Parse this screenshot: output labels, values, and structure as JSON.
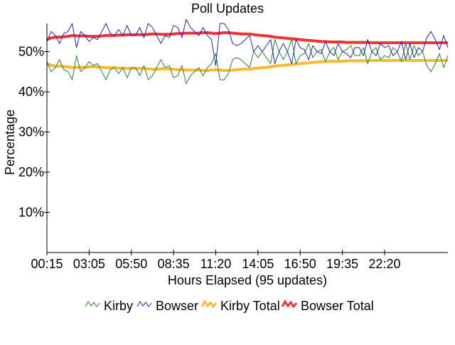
{
  "chart_data": {
    "type": "line",
    "title": "Poll Updates",
    "xlabel": "Hours Elapsed (95 updates)",
    "ylabel": "Percentage",
    "y_ticks": [
      "10%",
      "20%",
      "30%",
      "40%",
      "50%"
    ],
    "y_tick_values": [
      10,
      20,
      30,
      40,
      50
    ],
    "ylim": [
      0,
      57
    ],
    "x_ticks": [
      "00:15",
      "03:05",
      "05:50",
      "08:35",
      "11:20",
      "14:05",
      "16:50",
      "19:35",
      "22:20"
    ],
    "x_tick_indices": [
      0,
      10,
      20,
      30,
      40,
      50,
      60,
      70,
      80
    ],
    "xlim": [
      0,
      95
    ],
    "grid": false,
    "legend_position": "bottom",
    "series": [
      {
        "name": "Kirby",
        "color": "#228B22",
        "style": "thin",
        "values": [
          47.5,
          45.0,
          46.0,
          48.0,
          45.5,
          45.0,
          43.0,
          49.0,
          45.0,
          46.0,
          47.5,
          46.5,
          47.0,
          45.0,
          43.0,
          45.5,
          46.0,
          44.5,
          46.0,
          43.5,
          46.0,
          46.0,
          44.0,
          46.5,
          43.0,
          44.0,
          46.0,
          48.0,
          46.0,
          46.5,
          43.5,
          44.0,
          46.5,
          42.0,
          44.0,
          45.0,
          46.0,
          44.0,
          46.0,
          47.0,
          49.5,
          43.0,
          43.0,
          44.5,
          48.0,
          48.5,
          48.0,
          47.0,
          46.0,
          50.0,
          48.5,
          50.0,
          48.5,
          47.0,
          53.0,
          50.0,
          48.0,
          50.0,
          53.0,
          47.0,
          49.0,
          49.5,
          52.0,
          48.5,
          50.0,
          50.5,
          47.5,
          50.0,
          51.0,
          48.0,
          50.0,
          50.5,
          51.5,
          49.0,
          49.0,
          51.0,
          47.0,
          50.0,
          51.0,
          48.0,
          49.0,
          48.5,
          51.0,
          50.0,
          47.5,
          52.0,
          48.0,
          51.5,
          49.0,
          50.0,
          46.5,
          45.0,
          47.0,
          49.5,
          46.0,
          49.0
        ]
      },
      {
        "name": "Bowser",
        "color": "#2222CC",
        "style": "thin",
        "values": [
          52.5,
          55.0,
          54.0,
          52.0,
          54.5,
          55.0,
          57.0,
          51.0,
          55.0,
          54.0,
          52.5,
          53.5,
          53.0,
          55.0,
          57.0,
          54.5,
          54.0,
          55.5,
          54.0,
          56.5,
          54.0,
          54.0,
          56.0,
          53.5,
          57.0,
          56.0,
          54.0,
          52.0,
          54.0,
          53.5,
          56.5,
          56.0,
          53.5,
          58.0,
          56.0,
          55.0,
          54.0,
          56.0,
          54.0,
          53.0,
          46.5,
          57.0,
          57.0,
          55.5,
          52.0,
          51.5,
          52.0,
          53.0,
          54.0,
          50.0,
          51.5,
          50.0,
          51.5,
          53.0,
          47.0,
          50.0,
          52.0,
          50.0,
          47.0,
          53.0,
          51.0,
          50.5,
          48.0,
          51.5,
          50.0,
          49.5,
          52.5,
          50.0,
          49.0,
          52.0,
          50.0,
          49.5,
          48.5,
          51.0,
          51.0,
          49.0,
          53.0,
          50.0,
          49.0,
          52.0,
          51.0,
          51.5,
          49.0,
          50.0,
          52.5,
          48.0,
          52.0,
          48.5,
          51.0,
          50.0,
          53.5,
          55.0,
          53.0,
          50.5,
          54.0,
          51.0
        ]
      },
      {
        "name": "Kirby Total",
        "color": "#FFB833",
        "style": "thick",
        "values": [
          47.0,
          46.6,
          46.4,
          46.4,
          46.3,
          46.2,
          46.0,
          46.1,
          46.1,
          46.1,
          46.2,
          46.2,
          46.2,
          46.1,
          46.0,
          46.0,
          46.0,
          45.9,
          45.9,
          45.8,
          45.8,
          45.8,
          45.8,
          45.8,
          45.7,
          45.6,
          45.6,
          45.7,
          45.7,
          45.7,
          45.6,
          45.5,
          45.5,
          45.4,
          45.4,
          45.4,
          45.4,
          45.3,
          45.3,
          45.4,
          45.5,
          45.4,
          45.3,
          45.3,
          45.4,
          45.5,
          45.6,
          45.6,
          45.6,
          45.8,
          45.9,
          46.0,
          46.1,
          46.2,
          46.4,
          46.5,
          46.6,
          46.7,
          46.8,
          46.9,
          47.0,
          47.1,
          47.2,
          47.3,
          47.4,
          47.5,
          47.5,
          47.6,
          47.6,
          47.6,
          47.6,
          47.7,
          47.7,
          47.7,
          47.7,
          47.7,
          47.7,
          47.8,
          47.8,
          47.8,
          47.8,
          47.8,
          47.8,
          47.8,
          47.8,
          47.8,
          47.8,
          47.8,
          47.8,
          47.8,
          47.8,
          47.8,
          47.8,
          47.8,
          47.8,
          47.8
        ]
      },
      {
        "name": "Bowser Total",
        "color": "#EE3333",
        "style": "thick",
        "values": [
          53.0,
          53.4,
          53.6,
          53.6,
          53.7,
          53.8,
          54.0,
          53.9,
          53.9,
          53.9,
          53.8,
          53.8,
          53.8,
          53.9,
          54.0,
          54.0,
          54.0,
          54.1,
          54.1,
          54.2,
          54.2,
          54.2,
          54.2,
          54.2,
          54.3,
          54.4,
          54.4,
          54.3,
          54.3,
          54.3,
          54.4,
          54.5,
          54.5,
          54.6,
          54.6,
          54.6,
          54.6,
          54.7,
          54.7,
          54.6,
          54.5,
          54.6,
          54.7,
          54.7,
          54.6,
          54.5,
          54.4,
          54.4,
          54.4,
          54.2,
          54.1,
          54.0,
          53.9,
          53.8,
          53.6,
          53.5,
          53.4,
          53.3,
          53.2,
          53.1,
          53.0,
          52.9,
          52.8,
          52.7,
          52.6,
          52.5,
          52.5,
          52.4,
          52.4,
          52.4,
          52.4,
          52.3,
          52.3,
          52.3,
          52.3,
          52.3,
          52.3,
          52.2,
          52.2,
          52.2,
          52.2,
          52.2,
          52.2,
          52.2,
          52.2,
          52.2,
          52.2,
          52.2,
          52.2,
          52.2,
          52.2,
          52.2,
          52.2,
          52.2,
          52.2,
          52.2
        ]
      }
    ]
  }
}
